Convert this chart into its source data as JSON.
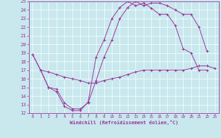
{
  "xlabel": "Windchill (Refroidissement éolien,°C)",
  "xlim_min": 0,
  "xlim_max": 23,
  "ylim_min": 12,
  "ylim_max": 25,
  "xticks": [
    0,
    1,
    2,
    3,
    4,
    5,
    6,
    7,
    8,
    9,
    10,
    11,
    12,
    13,
    14,
    15,
    16,
    17,
    18,
    19,
    20,
    21,
    22,
    23
  ],
  "yticks": [
    12,
    13,
    14,
    15,
    16,
    17,
    18,
    19,
    20,
    21,
    22,
    23,
    24,
    25
  ],
  "bg_color": "#c8e8ee",
  "line_color": "#993399",
  "grid_color": "#aacccc",
  "line1_x": [
    0,
    1,
    2,
    3,
    4,
    5,
    6,
    7,
    8,
    9,
    10,
    11,
    12,
    13,
    14,
    15,
    16,
    17,
    18,
    19,
    20,
    21,
    22
  ],
  "line1_y": [
    18.8,
    17.0,
    15.0,
    14.8,
    13.2,
    12.5,
    12.5,
    13.2,
    15.8,
    18.5,
    20.5,
    23.0,
    24.3,
    25.0,
    24.5,
    24.8,
    24.8,
    24.5,
    24.0,
    23.5,
    23.5,
    22.0,
    19.2
  ],
  "line2_x": [
    0,
    1,
    2,
    3,
    4,
    5,
    6,
    7,
    8,
    9,
    10,
    11,
    12,
    13,
    14,
    15,
    16,
    17,
    18,
    19,
    20,
    21,
    22
  ],
  "line2_y": [
    18.8,
    17.0,
    15.0,
    14.5,
    12.8,
    12.3,
    12.3,
    13.3,
    18.5,
    20.5,
    23.0,
    24.3,
    25.0,
    24.5,
    24.8,
    24.2,
    23.5,
    23.5,
    22.2,
    19.5,
    19.0,
    17.0,
    17.0
  ],
  "line3_x": [
    1,
    2,
    3,
    4,
    5,
    6,
    7,
    8,
    9,
    10,
    11,
    12,
    13,
    14,
    15,
    16,
    17,
    18,
    19,
    20,
    21,
    22,
    23
  ],
  "line3_y": [
    17.0,
    16.8,
    16.5,
    16.2,
    16.0,
    15.8,
    15.5,
    15.5,
    15.8,
    16.0,
    16.2,
    16.5,
    16.8,
    17.0,
    17.0,
    17.0,
    17.0,
    17.0,
    17.0,
    17.2,
    17.5,
    17.5,
    17.2
  ]
}
